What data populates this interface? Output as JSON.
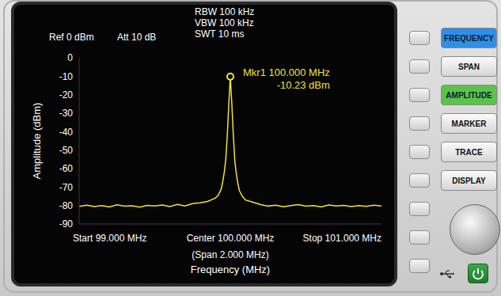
{
  "header": {
    "reference": "Ref 0 dBm",
    "attenuation": "Att 10 dB",
    "settings": [
      "RBW 100 kHz",
      "VBW 100 kHz",
      "SWT 10 ms"
    ]
  },
  "chart_data": {
    "type": "line",
    "x_label": "Frequency (MHz)",
    "y_label": "Amplitude (dBm)",
    "span_label": "(Span 2.000 MHz)",
    "x": [
      99.0,
      99.05,
      99.1,
      99.15,
      99.2,
      99.25,
      99.3,
      99.35,
      99.4,
      99.45,
      99.5,
      99.55,
      99.6,
      99.65,
      99.7,
      99.75,
      99.8,
      99.85,
      99.9,
      99.92,
      99.94,
      99.95,
      99.96,
      99.97,
      99.98,
      99.99,
      100.0,
      100.01,
      100.02,
      100.03,
      100.04,
      100.05,
      100.06,
      100.08,
      100.1,
      100.15,
      100.2,
      100.25,
      100.3,
      100.35,
      100.4,
      100.45,
      100.5,
      100.55,
      100.6,
      100.65,
      100.7,
      100.75,
      100.8,
      100.85,
      100.9,
      100.95,
      101.0
    ],
    "values": [
      -80.5,
      -79.8,
      -80.6,
      -80.0,
      -80.8,
      -79.6,
      -80.4,
      -80.1,
      -80.9,
      -79.9,
      -80.3,
      -79.7,
      -80.6,
      -79.4,
      -80.2,
      -79.0,
      -78.5,
      -77.8,
      -76.0,
      -74.5,
      -71.0,
      -67.0,
      -62.0,
      -55.0,
      -42.0,
      -25.0,
      -10.23,
      -25.0,
      -42.0,
      -56.0,
      -63.0,
      -68.0,
      -72.0,
      -75.0,
      -77.0,
      -78.2,
      -79.5,
      -80.3,
      -79.8,
      -80.7,
      -80.0,
      -79.5,
      -80.4,
      -80.0,
      -80.8,
      -79.7,
      -80.2,
      -79.9,
      -80.6,
      -80.0,
      -80.5,
      -79.8,
      -80.3
    ],
    "color": "#f2e13c",
    "xlim": [
      99,
      101
    ],
    "xticks": [
      {
        "value": 99,
        "label": "Start 99.000 MHz"
      },
      {
        "value": 100,
        "label": "Center 100.000 MHz"
      },
      {
        "value": 101,
        "label": "Stop 101.000 MHz"
      }
    ],
    "ylim": [
      -90,
      0
    ],
    "yticks": [
      0,
      -10,
      -20,
      -30,
      -40,
      -50,
      -60,
      -70,
      -80,
      -90
    ],
    "grid": false,
    "annotations": [
      {
        "x": 100,
        "y": -10.23,
        "lines": [
          "Mkr1 100.000 MHz",
          "-10.23 dBm"
        ]
      }
    ]
  },
  "buttons": [
    {
      "label": "FREQUENCY",
      "color": "#2f8fe6"
    },
    {
      "label": "SPAN"
    },
    {
      "label": "AMPLITUDE",
      "color": "#5cc34a"
    },
    {
      "label": "MARKER"
    },
    {
      "label": "TRACE"
    },
    {
      "label": "DISPLAY"
    }
  ]
}
